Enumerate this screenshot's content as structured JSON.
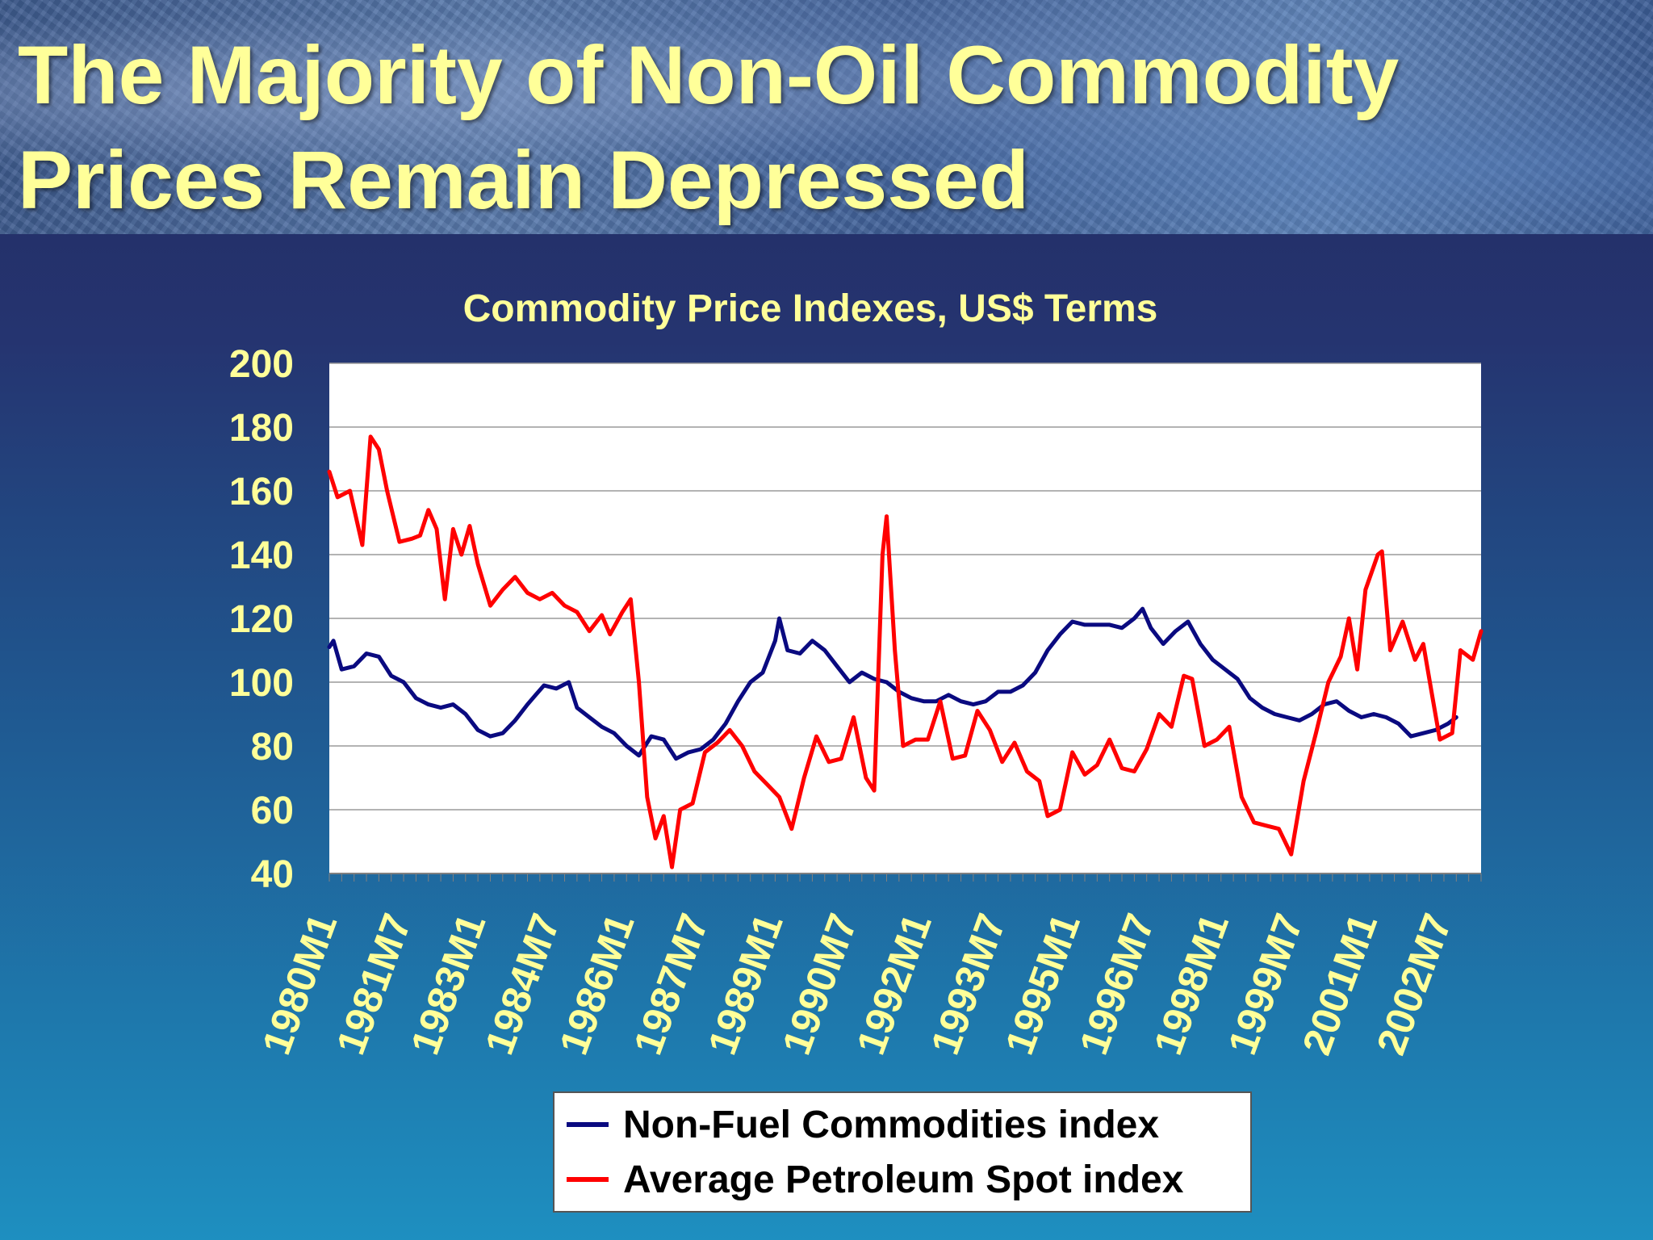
{
  "slide_title": "The Majority of Non-Oil Commodity Prices Remain Depressed",
  "chart_data": {
    "type": "line",
    "title": "Commodity Price Indexes, US$ Terms",
    "xlabel": "",
    "ylabel": "",
    "ylim": [
      40,
      200
    ],
    "y_ticks": [
      "200",
      "180",
      "160",
      "140",
      "120",
      "100",
      "80",
      "60",
      "40"
    ],
    "x_tick_labels": [
      "1980M1",
      "1981M7",
      "1983M1",
      "1984M7",
      "1986M1",
      "1987M7",
      "1989M1",
      "1990M7",
      "1992M1",
      "1993M7",
      "1995M1",
      "1996M7",
      "1998M1",
      "1999M7",
      "2001M1",
      "2002M7"
    ],
    "grid": "horizontal",
    "legend_position": "bottom",
    "series": [
      {
        "name": "Non-Fuel Commodities index",
        "color": "#0a0a80",
        "points": [
          [
            "1980-01",
            111
          ],
          [
            "1980-02",
            113
          ],
          [
            "1980-04",
            104
          ],
          [
            "1980-07",
            105
          ],
          [
            "1980-10",
            109
          ],
          [
            "1981-01",
            108
          ],
          [
            "1981-04",
            102
          ],
          [
            "1981-07",
            100
          ],
          [
            "1981-10",
            95
          ],
          [
            "1982-01",
            93
          ],
          [
            "1982-04",
            92
          ],
          [
            "1982-07",
            93
          ],
          [
            "1982-10",
            90
          ],
          [
            "1983-01",
            85
          ],
          [
            "1983-04",
            83
          ],
          [
            "1983-07",
            84
          ],
          [
            "1983-10",
            88
          ],
          [
            "1984-01",
            93
          ],
          [
            "1984-03",
            96
          ],
          [
            "1984-05",
            99
          ],
          [
            "1984-08",
            98
          ],
          [
            "1984-11",
            100
          ],
          [
            "1985-01",
            92
          ],
          [
            "1985-04",
            89
          ],
          [
            "1985-07",
            86
          ],
          [
            "1985-10",
            84
          ],
          [
            "1986-01",
            80
          ],
          [
            "1986-04",
            77
          ],
          [
            "1986-07",
            83
          ],
          [
            "1986-10",
            82
          ],
          [
            "1987-01",
            76
          ],
          [
            "1987-04",
            78
          ],
          [
            "1987-07",
            79
          ],
          [
            "1987-10",
            82
          ],
          [
            "1988-01",
            87
          ],
          [
            "1988-04",
            94
          ],
          [
            "1988-07",
            100
          ],
          [
            "1988-10",
            103
          ],
          [
            "1989-01",
            113
          ],
          [
            "1989-02",
            120
          ],
          [
            "1989-04",
            110
          ],
          [
            "1989-07",
            109
          ],
          [
            "1989-10",
            113
          ],
          [
            "1990-01",
            110
          ],
          [
            "1990-04",
            105
          ],
          [
            "1990-07",
            100
          ],
          [
            "1990-10",
            103
          ],
          [
            "1991-01",
            101
          ],
          [
            "1991-04",
            100
          ],
          [
            "1991-07",
            97
          ],
          [
            "1991-10",
            95
          ],
          [
            "1992-01",
            94
          ],
          [
            "1992-04",
            94
          ],
          [
            "1992-07",
            96
          ],
          [
            "1992-10",
            94
          ],
          [
            "1993-01",
            93
          ],
          [
            "1993-04",
            94
          ],
          [
            "1993-07",
            97
          ],
          [
            "1993-10",
            97
          ],
          [
            "1994-01",
            99
          ],
          [
            "1994-04",
            103
          ],
          [
            "1994-07",
            110
          ],
          [
            "1994-10",
            115
          ],
          [
            "1995-01",
            119
          ],
          [
            "1995-04",
            118
          ],
          [
            "1995-07",
            118
          ],
          [
            "1995-10",
            118
          ],
          [
            "1996-01",
            117
          ],
          [
            "1996-04",
            120
          ],
          [
            "1996-06",
            123
          ],
          [
            "1996-08",
            117
          ],
          [
            "1996-11",
            112
          ],
          [
            "1997-02",
            116
          ],
          [
            "1997-05",
            119
          ],
          [
            "1997-08",
            112
          ],
          [
            "1997-11",
            107
          ],
          [
            "1998-02",
            104
          ],
          [
            "1998-05",
            101
          ],
          [
            "1998-08",
            95
          ],
          [
            "1998-11",
            92
          ],
          [
            "1999-02",
            90
          ],
          [
            "1999-05",
            89
          ],
          [
            "1999-08",
            88
          ],
          [
            "1999-11",
            90
          ],
          [
            "2000-02",
            93
          ],
          [
            "2000-05",
            94
          ],
          [
            "2000-08",
            91
          ],
          [
            "2000-11",
            89
          ],
          [
            "2001-02",
            90
          ],
          [
            "2001-05",
            89
          ],
          [
            "2001-08",
            87
          ],
          [
            "2001-11",
            83
          ],
          [
            "2002-02",
            84
          ],
          [
            "2002-05",
            85
          ],
          [
            "2002-08",
            87
          ],
          [
            "2002-10",
            89
          ]
        ]
      },
      {
        "name": "Average Petroleum Spot index",
        "color": "#ff0000",
        "points": [
          [
            "1980-01",
            166
          ],
          [
            "1980-03",
            158
          ],
          [
            "1980-06",
            160
          ],
          [
            "1980-09",
            143
          ],
          [
            "1980-11",
            177
          ],
          [
            "1981-01",
            173
          ],
          [
            "1981-03",
            160
          ],
          [
            "1981-06",
            144
          ],
          [
            "1981-09",
            145
          ],
          [
            "1981-11",
            146
          ],
          [
            "1982-01",
            154
          ],
          [
            "1982-03",
            148
          ],
          [
            "1982-05",
            126
          ],
          [
            "1982-07",
            148
          ],
          [
            "1982-09",
            140
          ],
          [
            "1982-11",
            149
          ],
          [
            "1983-01",
            137
          ],
          [
            "1983-04",
            124
          ],
          [
            "1983-07",
            129
          ],
          [
            "1983-10",
            133
          ],
          [
            "1984-01",
            128
          ],
          [
            "1984-04",
            126
          ],
          [
            "1984-07",
            128
          ],
          [
            "1984-10",
            124
          ],
          [
            "1985-01",
            122
          ],
          [
            "1985-04",
            116
          ],
          [
            "1985-07",
            121
          ],
          [
            "1985-09",
            115
          ],
          [
            "1985-12",
            122
          ],
          [
            "1986-02",
            126
          ],
          [
            "1986-04",
            100
          ],
          [
            "1986-06",
            64
          ],
          [
            "1986-08",
            51
          ],
          [
            "1986-10",
            58
          ],
          [
            "1986-12",
            42
          ],
          [
            "1987-02",
            60
          ],
          [
            "1987-05",
            62
          ],
          [
            "1987-08",
            78
          ],
          [
            "1987-11",
            81
          ],
          [
            "1988-02",
            85
          ],
          [
            "1988-05",
            80
          ],
          [
            "1988-08",
            72
          ],
          [
            "1988-11",
            68
          ],
          [
            "1989-02",
            64
          ],
          [
            "1989-05",
            54
          ],
          [
            "1989-08",
            70
          ],
          [
            "1989-11",
            83
          ],
          [
            "1990-02",
            75
          ],
          [
            "1990-05",
            76
          ],
          [
            "1990-08",
            89
          ],
          [
            "1990-11",
            70
          ],
          [
            "1991-01",
            66
          ],
          [
            "1991-03",
            140
          ],
          [
            "1991-04",
            152
          ],
          [
            "1991-06",
            110
          ],
          [
            "1991-08",
            80
          ],
          [
            "1991-11",
            82
          ],
          [
            "1992-02",
            82
          ],
          [
            "1992-05",
            94
          ],
          [
            "1992-08",
            76
          ],
          [
            "1992-11",
            77
          ],
          [
            "1993-02",
            91
          ],
          [
            "1993-05",
            85
          ],
          [
            "1993-08",
            75
          ],
          [
            "1993-11",
            81
          ],
          [
            "1994-02",
            72
          ],
          [
            "1994-05",
            69
          ],
          [
            "1994-07",
            58
          ],
          [
            "1994-10",
            60
          ],
          [
            "1995-01",
            78
          ],
          [
            "1995-04",
            71
          ],
          [
            "1995-07",
            74
          ],
          [
            "1995-10",
            82
          ],
          [
            "1996-01",
            73
          ],
          [
            "1996-04",
            72
          ],
          [
            "1996-07",
            79
          ],
          [
            "1996-10",
            90
          ],
          [
            "1997-01",
            86
          ],
          [
            "1997-04",
            102
          ],
          [
            "1997-06",
            101
          ],
          [
            "1997-09",
            80
          ],
          [
            "1997-12",
            82
          ],
          [
            "1998-03",
            86
          ],
          [
            "1998-06",
            64
          ],
          [
            "1998-09",
            56
          ],
          [
            "1998-12",
            55
          ],
          [
            "1999-03",
            54
          ],
          [
            "1999-06",
            46
          ],
          [
            "1999-09",
            69
          ],
          [
            "1999-12",
            84
          ],
          [
            "2000-03",
            100
          ],
          [
            "2000-06",
            108
          ],
          [
            "2000-08",
            120
          ],
          [
            "2000-10",
            104
          ],
          [
            "2000-12",
            129
          ],
          [
            "2001-03",
            140
          ],
          [
            "2001-04",
            141
          ],
          [
            "2001-06",
            110
          ],
          [
            "2001-09",
            119
          ],
          [
            "2001-12",
            107
          ],
          [
            "2002-02",
            112
          ],
          [
            "2002-04",
            97
          ],
          [
            "2002-06",
            82
          ],
          [
            "2002-09",
            84
          ],
          [
            "2002-11",
            110
          ],
          [
            "2003-02",
            107
          ],
          [
            "2003-04",
            116
          ]
        ]
      }
    ]
  }
}
